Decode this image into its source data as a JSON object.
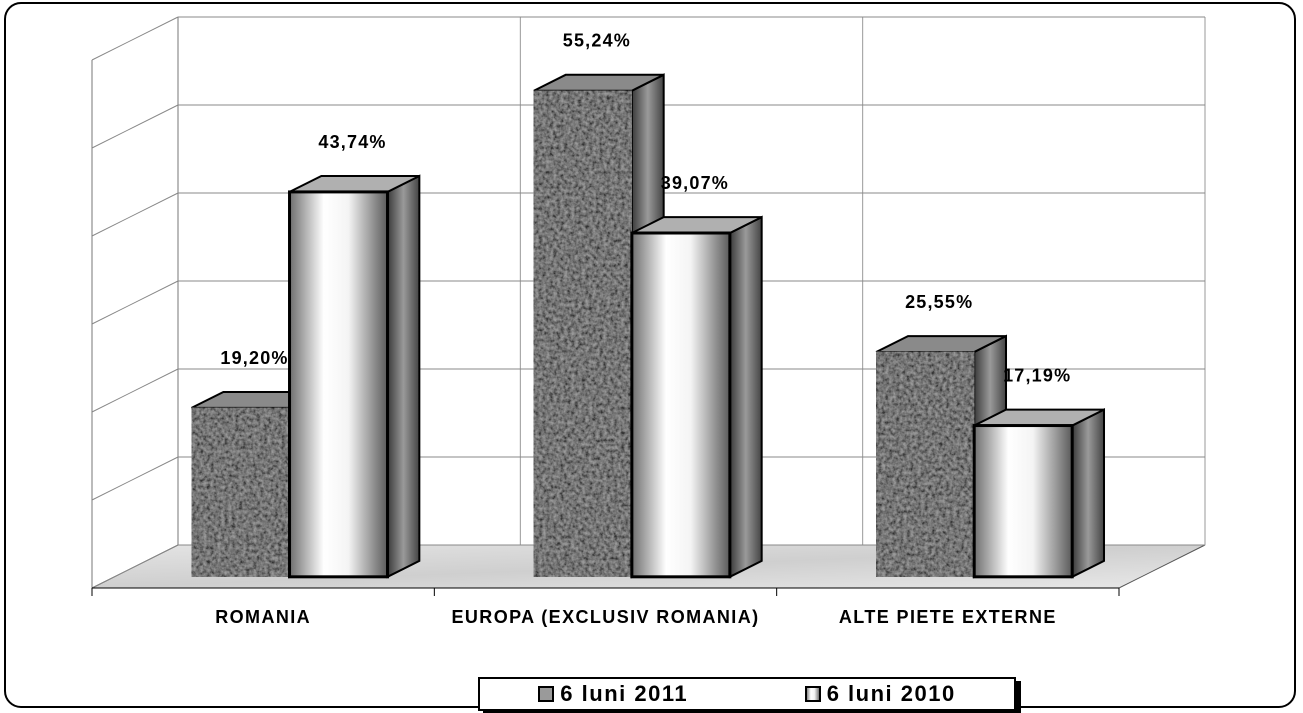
{
  "chart_data": {
    "type": "bar",
    "categories": [
      "ROMANIA",
      "EUROPA (EXCLUSIV ROMANIA)",
      "ALTE PIETE EXTERNE"
    ],
    "series": [
      {
        "name": "6 luni 2011",
        "color": "#9a9a9a",
        "values": [
          19.2,
          55.24,
          25.55
        ],
        "value_labels": [
          "19,20%",
          "55,24%",
          "25,55%"
        ]
      },
      {
        "name": "6 luni 2010",
        "color": "#ffffff",
        "values": [
          43.74,
          39.07,
          17.19
        ],
        "value_labels": [
          "43,74%",
          "39,07%",
          "17,19%"
        ]
      }
    ],
    "ylim": [
      0,
      60
    ],
    "yticks": [
      0,
      10,
      20,
      30,
      40,
      50,
      60
    ],
    "grid": true
  }
}
